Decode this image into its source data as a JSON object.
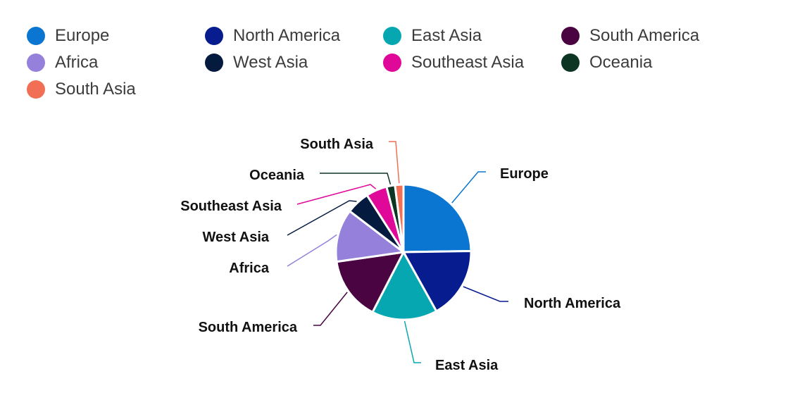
{
  "chart_data": {
    "type": "pie",
    "categories": [
      "Europe",
      "North America",
      "East Asia",
      "South America",
      "Africa",
      "West Asia",
      "Southeast Asia",
      "Oceania",
      "South Asia"
    ],
    "values": [
      24.5,
      17.0,
      15.5,
      15.0,
      12.5,
      5.5,
      5.0,
      2.0,
      2.0
    ],
    "colors": [
      "#0b76d1",
      "#071c8e",
      "#07a7b1",
      "#4a0442",
      "#9580dc",
      "#041b3f",
      "#e00899",
      "#0c3524",
      "#f06f55"
    ],
    "legend": {
      "position": "top",
      "items": [
        "Europe",
        "North America",
        "East Asia",
        "South America",
        "Africa",
        "West Asia",
        "Southeast Asia",
        "Oceania",
        "South Asia"
      ]
    },
    "title": ""
  }
}
